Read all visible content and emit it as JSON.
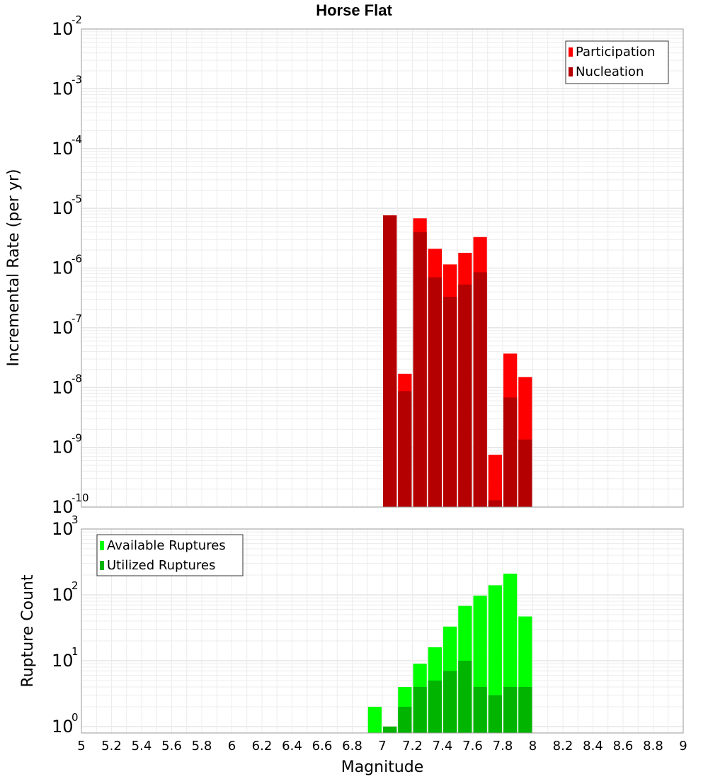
{
  "chart_data": [
    {
      "type": "bar",
      "title": "Horse Flat",
      "xlabel": "Magnitude",
      "ylabel": "Incremental Rate (per yr)",
      "yscale": "log",
      "xlim": [
        5,
        9
      ],
      "ylim": [
        1e-10,
        0.01
      ],
      "ytick_bases": [
        "10",
        "10",
        "10",
        "10",
        "10",
        "10",
        "10",
        "10",
        "10"
      ],
      "ytick_exps": [
        "-10",
        "-9",
        "-8",
        "-7",
        "-6",
        "-5",
        "-4",
        "-3",
        "-2"
      ],
      "grid": true,
      "legend_position": "top-right",
      "bar_width": 0.1,
      "x": [
        7.0,
        7.1,
        7.2,
        7.3,
        7.4,
        7.5,
        7.6,
        7.7,
        7.8,
        7.9
      ],
      "series": [
        {
          "name": "Participation",
          "color": "#ff0000",
          "values": [
            7.6e-06,
            1.7e-08,
            6.8e-06,
            2.1e-06,
            1.15e-06,
            1.8e-06,
            3.3e-06,
            7.5e-10,
            3.7e-08,
            1.5e-08
          ]
        },
        {
          "name": "Nucleation",
          "color": "#b40000",
          "values": [
            7.6e-06,
            8.7e-09,
            4e-06,
            7e-07,
            3.3e-07,
            5.3e-07,
            8.5e-07,
            1.3e-10,
            6.8e-09,
            1.35e-09
          ]
        }
      ]
    },
    {
      "type": "bar",
      "xlabel": "Magnitude",
      "ylabel": "Rupture Count",
      "yscale": "log",
      "xlim": [
        5,
        9
      ],
      "ylim": [
        0.8,
        1000
      ],
      "ytick_bases": [
        "10",
        "10",
        "10",
        "10"
      ],
      "ytick_exps": [
        "0",
        "1",
        "2",
        "3"
      ],
      "xticks": [
        "5",
        "5.2",
        "5.4",
        "5.6",
        "5.8",
        "6",
        "6.2",
        "6.4",
        "6.6",
        "6.8",
        "7",
        "7.2",
        "7.4",
        "7.6",
        "7.8",
        "8",
        "8.2",
        "8.4",
        "8.6",
        "8.8",
        "9"
      ],
      "grid": true,
      "legend_position": "top-left",
      "bar_width": 0.1,
      "x": [
        6.9,
        7.0,
        7.1,
        7.2,
        7.3,
        7.4,
        7.5,
        7.6,
        7.7,
        7.8,
        7.9
      ],
      "series": [
        {
          "name": "Available Ruptures",
          "color": "#00ff00",
          "values": [
            2,
            1,
            4,
            9,
            16,
            33,
            68,
            97,
            140,
            210,
            47
          ]
        },
        {
          "name": "Utilized Ruptures",
          "color": "#00b400",
          "values": [
            0,
            1,
            2,
            4,
            5,
            7,
            10,
            4,
            3,
            4,
            4
          ]
        }
      ]
    }
  ]
}
